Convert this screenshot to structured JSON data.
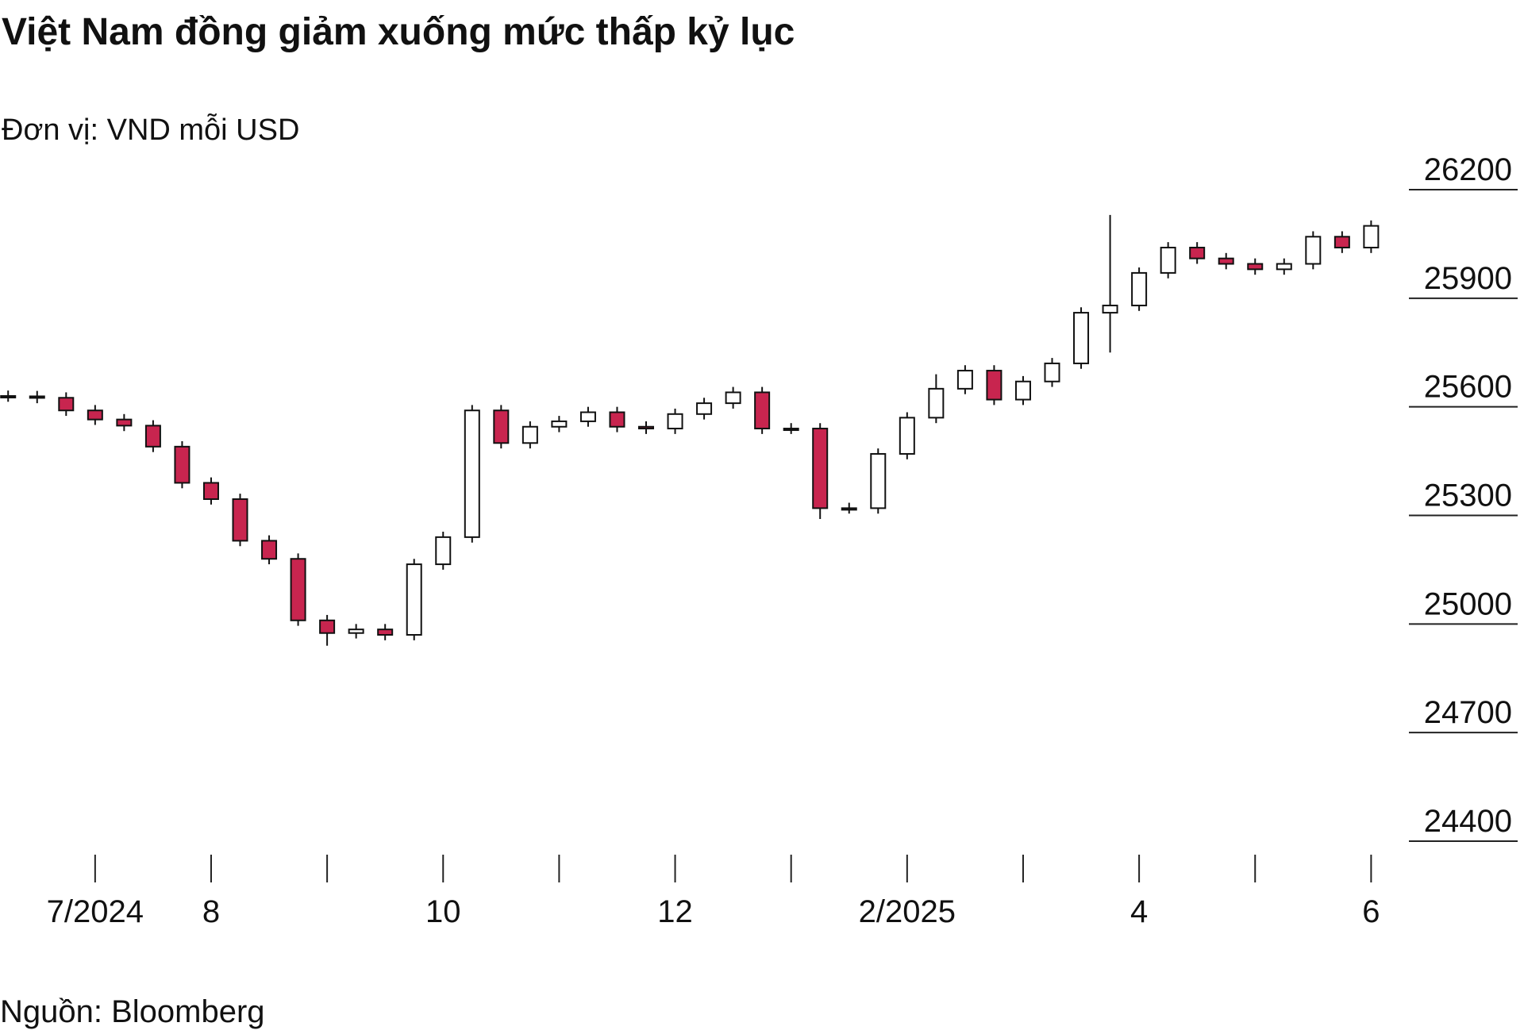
{
  "chart_data": {
    "type": "candlestick",
    "title": "Việt Nam đồng giảm xuống mức thấp kỷ lục",
    "subtitle": "Đơn vị: VND mỗi USD",
    "source": "Nguồn: Bloomberg",
    "x": [
      -0.75,
      -0.5,
      -0.25,
      0,
      0.25,
      0.5,
      0.75,
      1,
      1.25,
      1.5,
      1.75,
      2,
      2.25,
      2.5,
      2.75,
      3,
      3.25,
      3.5,
      3.75,
      4,
      4.25,
      4.5,
      4.75,
      5,
      5.25,
      5.5,
      5.75,
      6,
      6.25,
      6.5,
      6.75,
      7,
      7.25,
      7.5,
      7.75,
      8,
      8.25,
      8.5,
      8.75,
      9,
      9.25,
      9.5,
      9.75,
      10,
      10.25,
      10.5,
      10.75,
      11
    ],
    "open": [
      25630,
      25629,
      25625,
      25590,
      25565,
      25548,
      25490,
      25390,
      25345,
      25230,
      25180,
      25010,
      24975,
      24985,
      24970,
      25165,
      25240,
      25590,
      25500,
      25545,
      25560,
      25585,
      25545,
      25540,
      25580,
      25610,
      25640,
      25540,
      25540,
      25320,
      25320,
      25470,
      25570,
      25650,
      25700,
      25620,
      25670,
      25720,
      25860,
      25880,
      25970,
      26040,
      26010,
      25995,
      25980,
      25995,
      26070,
      26040
    ],
    "high": [
      25645,
      25644,
      25640,
      25605,
      25580,
      25563,
      25505,
      25405,
      25360,
      25245,
      25195,
      25025,
      25000,
      25000,
      25180,
      25255,
      25605,
      25605,
      25560,
      25575,
      25600,
      25600,
      25560,
      25595,
      25625,
      25655,
      25655,
      25555,
      25555,
      25335,
      25485,
      25585,
      25690,
      25715,
      25715,
      25685,
      25735,
      25875,
      26130,
      25985,
      26055,
      26055,
      26025,
      26010,
      26010,
      26085,
      26085,
      26115
    ],
    "low": [
      25614,
      25610,
      25575,
      25550,
      25533,
      25475,
      25375,
      25330,
      25215,
      25165,
      24995,
      24940,
      24960,
      24955,
      24955,
      25150,
      25225,
      25485,
      25485,
      25530,
      25545,
      25530,
      25525,
      25525,
      25565,
      25595,
      25525,
      25525,
      25290,
      25305,
      25305,
      25455,
      25555,
      25635,
      25605,
      25605,
      25655,
      25705,
      25750,
      25865,
      25955,
      25995,
      25980,
      25965,
      25965,
      25980,
      26025,
      26025
    ],
    "close": [
      25629,
      25625,
      25590,
      25565,
      25548,
      25490,
      25390,
      25345,
      25230,
      25180,
      25010,
      24975,
      24985,
      24970,
      25165,
      25240,
      25590,
      25500,
      25545,
      25560,
      25585,
      25545,
      25540,
      25580,
      25610,
      25640,
      25540,
      25540,
      25320,
      25320,
      25470,
      25570,
      25650,
      25700,
      25620,
      25670,
      25720,
      25860,
      25880,
      25970,
      26040,
      26010,
      25995,
      25980,
      25995,
      26070,
      26040,
      26100
    ],
    "up_color": "#ffffff",
    "down_color": "#c8254f",
    "xlim": [
      -0.82,
      11.1
    ],
    "xticks": [
      {
        "value": 0,
        "label": "7/2024"
      },
      {
        "value": 1,
        "label": "8"
      },
      {
        "value": 2,
        "label": null
      },
      {
        "value": 3,
        "label": "10"
      },
      {
        "value": 4,
        "label": null
      },
      {
        "value": 5,
        "label": "12"
      },
      {
        "value": 6,
        "label": null
      },
      {
        "value": 7,
        "label": "2/2025"
      },
      {
        "value": 8,
        "label": null
      },
      {
        "value": 9,
        "label": "4"
      },
      {
        "value": 10,
        "label": null
      },
      {
        "value": 11,
        "label": "6"
      }
    ],
    "ylim": [
      24400,
      26200
    ],
    "yticks": [
      24400,
      24700,
      25000,
      25300,
      25600,
      25900,
      26200
    ]
  }
}
